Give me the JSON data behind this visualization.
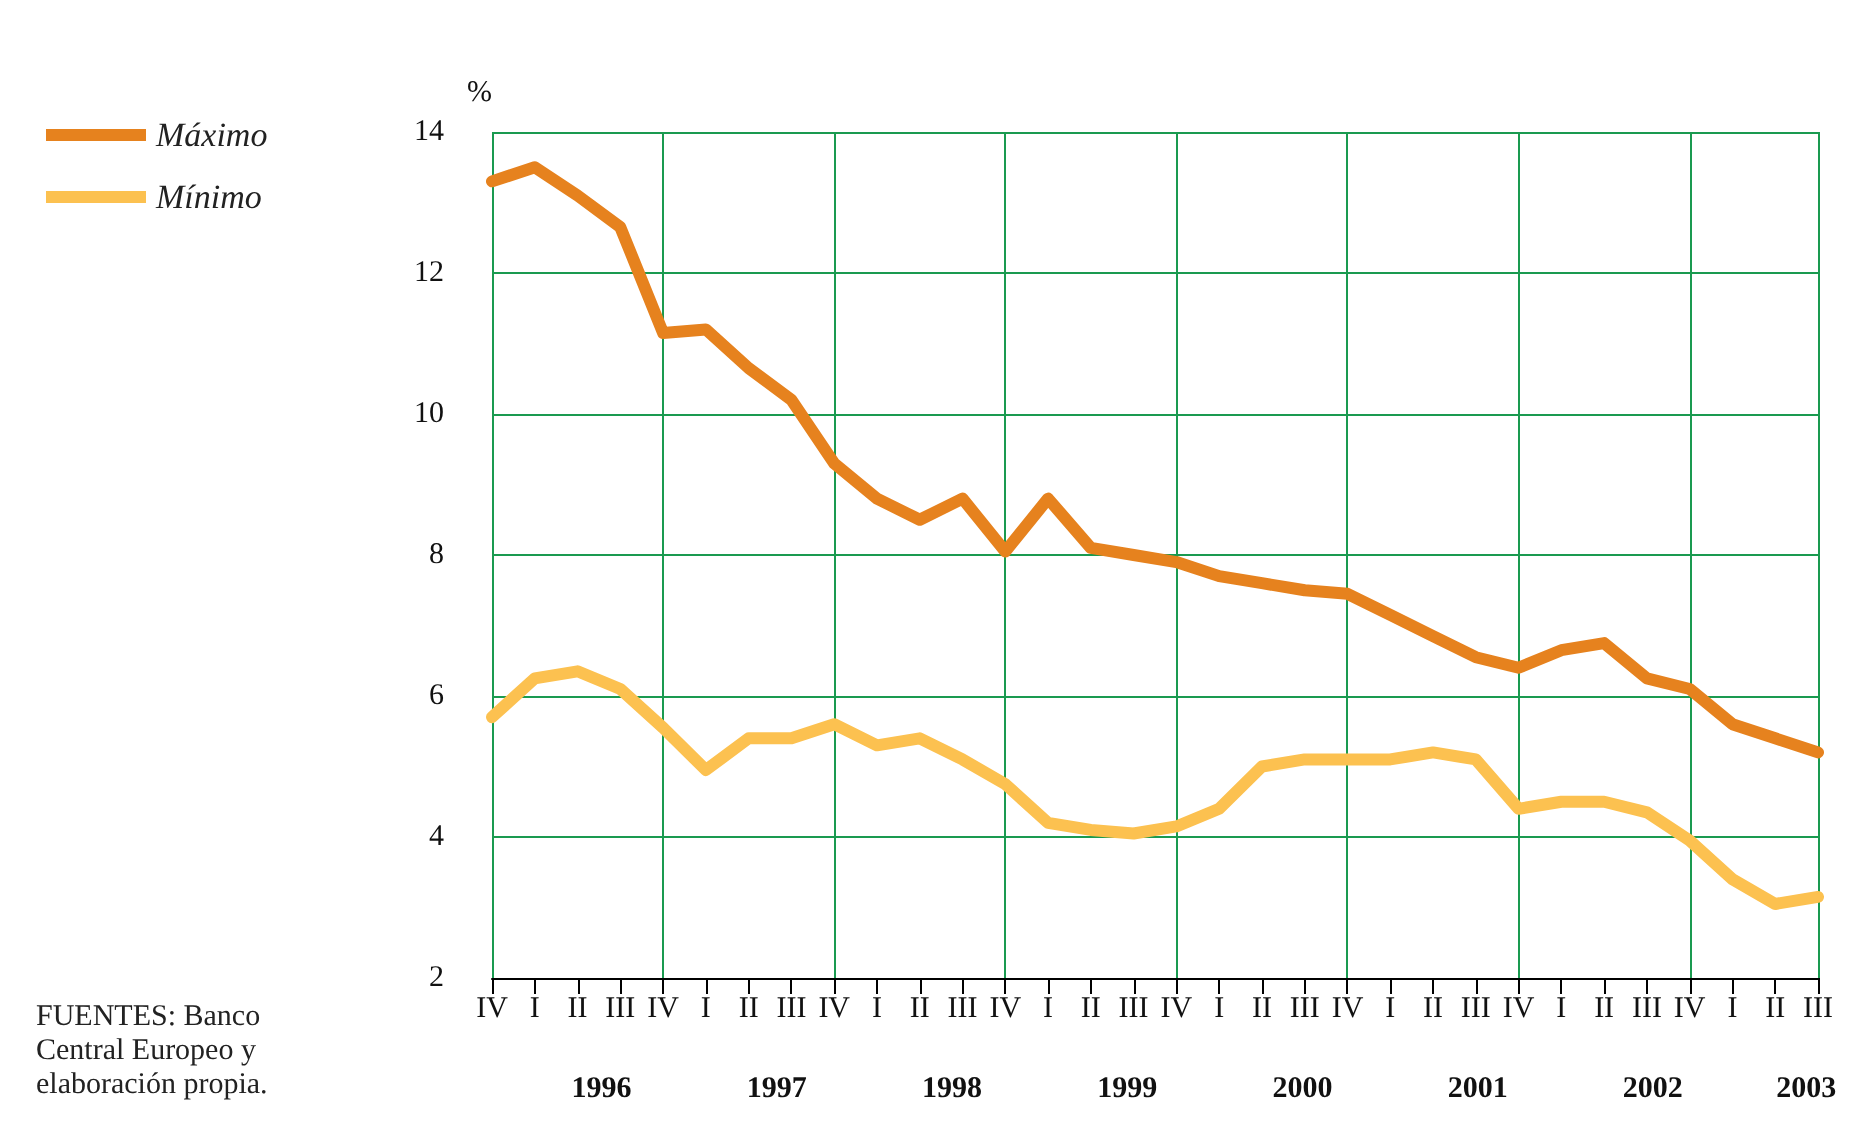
{
  "chart_data": {
    "type": "line",
    "ylabel": "%",
    "categories": [
      "IV",
      "I",
      "II",
      "III",
      "IV",
      "I",
      "II",
      "III",
      "IV",
      "I",
      "II",
      "III",
      "IV",
      "I",
      "II",
      "III",
      "IV",
      "I",
      "II",
      "III",
      "IV",
      "I",
      "II",
      "III",
      "IV",
      "I",
      "II",
      "III",
      "IV",
      "I",
      "II",
      "III"
    ],
    "series": [
      {
        "name": "Máximo",
        "color": "#e6821e",
        "values": [
          13.3,
          13.5,
          13.1,
          12.65,
          11.15,
          11.2,
          10.65,
          10.2,
          9.3,
          8.8,
          8.5,
          8.8,
          8.05,
          8.8,
          8.1,
          8.0,
          7.9,
          7.7,
          7.6,
          7.5,
          7.45,
          7.15,
          6.85,
          6.55,
          6.4,
          6.65,
          6.75,
          6.25,
          6.1,
          5.6,
          5.4,
          5.2
        ]
      },
      {
        "name": "Mínimo",
        "color": "#fcc150",
        "values": [
          5.7,
          6.25,
          6.35,
          6.1,
          5.55,
          4.95,
          5.4,
          5.4,
          5.6,
          5.3,
          5.4,
          5.1,
          4.75,
          4.2,
          4.1,
          4.05,
          4.15,
          4.4,
          5.0,
          5.1,
          5.1,
          5.1,
          5.2,
          5.1,
          4.4,
          4.5,
          4.5,
          4.35,
          3.95,
          3.4,
          3.05,
          3.15
        ]
      }
    ],
    "ylim": [
      2,
      14
    ],
    "yticks": [
      2,
      4,
      6,
      8,
      10,
      12,
      14
    ],
    "grid": true,
    "legend": "top left",
    "marker": "none",
    "line_style": "solid",
    "annotations": [
      "1996",
      "1997",
      "1998",
      "1999",
      "2000",
      "2001",
      "2002",
      "2003",
      "FUENTES: Banco\nCentral Europeo y\nelaboración propia."
    ]
  }
}
